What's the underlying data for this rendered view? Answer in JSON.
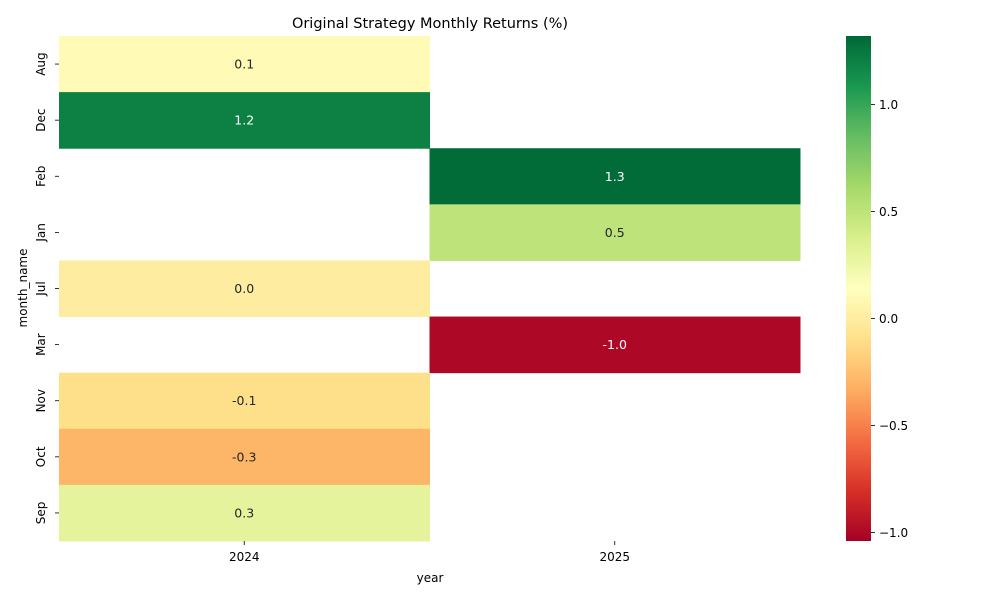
{
  "chart_data": {
    "type": "heatmap",
    "title": "Original Strategy Monthly Returns (%)",
    "xlabel": "year",
    "ylabel": "month_name",
    "x_categories": [
      "2024",
      "2025"
    ],
    "y_categories": [
      "Aug",
      "Dec",
      "Feb",
      "Jan",
      "Jul",
      "Mar",
      "Nov",
      "Oct",
      "Sep"
    ],
    "values": [
      [
        0.1,
        null
      ],
      [
        1.2,
        null
      ],
      [
        null,
        1.3
      ],
      [
        null,
        0.5
      ],
      [
        0.0,
        null
      ],
      [
        null,
        -1.0
      ],
      [
        -0.1,
        null
      ],
      [
        -0.3,
        null
      ],
      [
        0.3,
        null
      ]
    ],
    "cell_labels": [
      [
        "0.1",
        ""
      ],
      [
        "1.2",
        ""
      ],
      [
        "",
        "1.3"
      ],
      [
        "",
        "0.5"
      ],
      [
        "0.0",
        ""
      ],
      [
        "",
        "-1.0"
      ],
      [
        "-0.1",
        ""
      ],
      [
        "-0.3",
        ""
      ],
      [
        "0.3",
        ""
      ]
    ],
    "colormap": "RdYlGn",
    "colorbar": {
      "vmin": -1.04,
      "vmax": 1.32,
      "ticks": [
        -1.0,
        -0.5,
        0.0,
        0.5,
        1.0
      ],
      "tick_labels": [
        "−1.0",
        "−0.5",
        "0.0",
        "0.5",
        "1.0"
      ]
    },
    "legend": "colorbar-right",
    "grid": false
  }
}
